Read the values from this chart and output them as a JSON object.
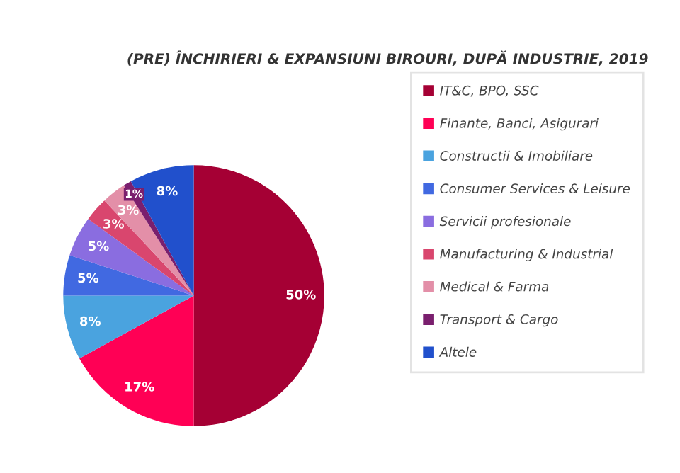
{
  "chart_data": {
    "type": "pie",
    "title": "(PRE) ÎNCHIRIERI & EXPANSIUNI BIROURI, DUPĂ INDUSTRIE, 2019",
    "categories": [
      "IT&C, BPO, SSC",
      "Finante, Banci, Asigurari",
      "Constructii & Imobiliare",
      "Consumer Services & Leisure",
      "Servicii profesionale",
      "Manufacturing & Industrial",
      "Medical & Farma",
      "Transport & Cargo",
      "Altele"
    ],
    "values": [
      50,
      17,
      8,
      5,
      5,
      3,
      3,
      1,
      8
    ],
    "colors": [
      "#a50034",
      "#ff0055",
      "#4aa3df",
      "#4169e1",
      "#8a6de0",
      "#d9466e",
      "#e38fa8",
      "#7a1f6e",
      "#2150cc"
    ],
    "value_labels": [
      "50%",
      "17%",
      "8%",
      "5%",
      "5%",
      "3%",
      "3%",
      "1%",
      "8%"
    ],
    "legend": "right"
  }
}
